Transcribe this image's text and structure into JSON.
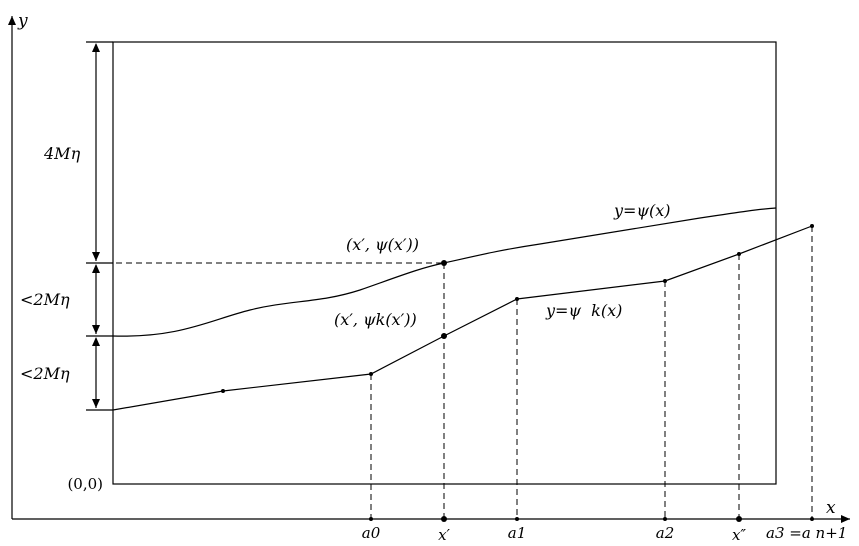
{
  "axes": {
    "x_label": "x",
    "y_label": "y",
    "origin_label": "(0,0)"
  },
  "dimensions": {
    "top": "4Mη",
    "middle": "<2Mη",
    "bottom": "<2Mη"
  },
  "curves": {
    "psi": "y=ψ(x)",
    "psi_k": "y=ψ  k(x)"
  },
  "points": {
    "upper": "(x′, ψ(x′))",
    "lower": "(x′, ψk(x′))"
  },
  "x_ticks": [
    "a0",
    "x′",
    "a1",
    "a2",
    "x″",
    "a3 =a n+1"
  ]
}
